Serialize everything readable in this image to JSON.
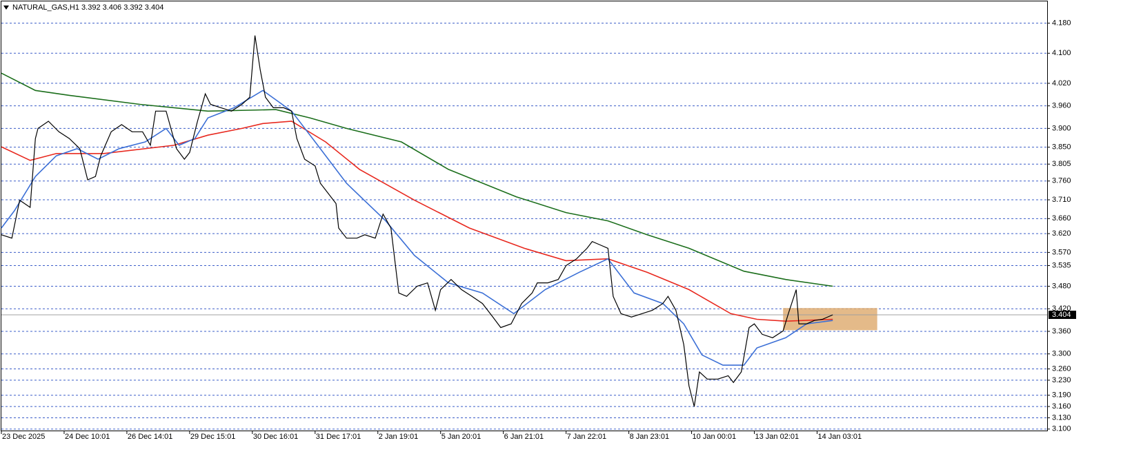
{
  "chart_data": {
    "type": "line",
    "title": "NATURAL_GAS,H1  3.392 3.406 3.392 3.404",
    "xlim": [
      0,
      400
    ],
    "ylim": [
      3.096,
      4.238
    ],
    "grid": true,
    "xticks": [
      {
        "value": 0,
        "label": "23 Dec 2025"
      },
      {
        "value": 24,
        "label": "24 Dec 10:01"
      },
      {
        "value": 48,
        "label": "26 Dec 14:01"
      },
      {
        "value": 72,
        "label": "29 Dec 15:01"
      },
      {
        "value": 96,
        "label": "30 Dec 16:01"
      },
      {
        "value": 120,
        "label": "31 Dec 17:01"
      },
      {
        "value": 144,
        "label": "2 Jan 19:01"
      },
      {
        "value": 168,
        "label": "5 Jan 20:01"
      },
      {
        "value": 192,
        "label": "6 Jan 21:01"
      },
      {
        "value": 216,
        "label": "7 Jan 22:01"
      },
      {
        "value": 240,
        "label": "8 Jan 23:01"
      },
      {
        "value": 264,
        "label": "10 Jan 00:01"
      },
      {
        "value": 288,
        "label": "13 Jan 02:01"
      },
      {
        "value": 312,
        "label": "14 Jan 03:01"
      }
    ],
    "yticks": [
      {
        "value": 4.18,
        "label": "4.180"
      },
      {
        "value": 4.1,
        "label": "4.100"
      },
      {
        "value": 4.02,
        "label": "4.020"
      },
      {
        "value": 3.96,
        "label": "3.960"
      },
      {
        "value": 3.9,
        "label": "3.900"
      },
      {
        "value": 3.85,
        "label": "3.850"
      },
      {
        "value": 3.805,
        "label": "3.805"
      },
      {
        "value": 3.76,
        "label": "3.760"
      },
      {
        "value": 3.71,
        "label": "3.710"
      },
      {
        "value": 3.66,
        "label": "3.660"
      },
      {
        "value": 3.62,
        "label": "3.620"
      },
      {
        "value": 3.57,
        "label": "3.570"
      },
      {
        "value": 3.535,
        "label": "3.535"
      },
      {
        "value": 3.48,
        "label": "3.480"
      },
      {
        "value": 3.42,
        "label": "3.420"
      },
      {
        "value": 3.36,
        "label": "3.360"
      },
      {
        "value": 3.3,
        "label": "3.300"
      },
      {
        "value": 3.26,
        "label": "3.260"
      },
      {
        "value": 3.23,
        "label": "3.230"
      },
      {
        "value": 3.19,
        "label": "3.190"
      },
      {
        "value": 3.16,
        "label": "3.160"
      },
      {
        "value": 3.13,
        "label": "3.130"
      },
      {
        "value": 3.1,
        "label": "3.100"
      }
    ],
    "current_price": {
      "value": 3.404,
      "label": "3.404"
    },
    "zone": {
      "color": "#dfae74",
      "x": [
        299,
        335
      ],
      "y": [
        3.363,
        3.422
      ]
    },
    "series": [
      {
        "color": "#000000",
        "x": [
          0,
          4,
          7,
          11,
          13,
          14,
          18,
          22,
          26,
          30,
          33,
          36,
          38,
          42,
          46,
          50,
          54,
          57,
          59,
          63,
          67,
          70,
          72,
          75,
          78,
          80,
          84,
          88,
          92,
          95,
          97,
          99,
          101,
          104,
          108,
          111,
          113,
          116,
          120,
          122,
          125,
          128,
          129,
          132,
          136,
          139,
          143,
          146,
          149,
          152,
          155,
          159,
          163,
          166,
          168,
          172,
          176,
          180,
          184,
          188,
          191,
          195,
          199,
          203,
          205,
          209,
          213,
          216,
          220,
          224,
          226,
          229,
          232,
          234,
          237,
          241,
          245,
          249,
          253,
          255,
          258,
          261,
          263,
          265,
          267,
          270,
          274,
          278,
          280,
          283,
          286,
          288,
          291,
          295,
          299,
          301,
          304,
          305,
          308,
          311,
          314,
          318
        ],
        "values": [
          3.617,
          3.608,
          3.709,
          3.69,
          3.873,
          3.9,
          3.919,
          3.891,
          3.873,
          3.846,
          3.763,
          3.772,
          3.827,
          3.891,
          3.91,
          3.891,
          3.891,
          3.855,
          3.946,
          3.946,
          3.846,
          3.818,
          3.836,
          3.919,
          3.992,
          3.964,
          3.955,
          3.946,
          3.964,
          3.983,
          4.147,
          4.056,
          3.983,
          3.955,
          3.955,
          3.946,
          3.873,
          3.818,
          3.8,
          3.754,
          3.727,
          3.7,
          3.635,
          3.608,
          3.608,
          3.617,
          3.608,
          3.672,
          3.635,
          3.462,
          3.453,
          3.48,
          3.489,
          3.416,
          3.471,
          3.498,
          3.471,
          3.453,
          3.434,
          3.398,
          3.37,
          3.38,
          3.434,
          3.462,
          3.489,
          3.489,
          3.498,
          3.535,
          3.553,
          3.581,
          3.599,
          3.59,
          3.581,
          3.453,
          3.407,
          3.398,
          3.407,
          3.416,
          3.434,
          3.453,
          3.416,
          3.325,
          3.215,
          3.16,
          3.252,
          3.233,
          3.233,
          3.242,
          3.224,
          3.252,
          3.37,
          3.38,
          3.352,
          3.343,
          3.361,
          3.407,
          3.471,
          3.38,
          3.38,
          3.389,
          3.392,
          3.404
        ]
      },
      {
        "color": "#3b6fd6",
        "x": [
          0,
          5,
          13,
          21,
          29,
          37,
          45,
          55,
          63,
          68,
          74,
          79,
          89,
          100,
          111,
          121,
          132,
          147,
          158,
          171,
          184,
          196,
          208,
          221,
          232,
          242,
          253,
          261,
          268,
          276,
          284,
          289,
          300,
          308,
          318
        ],
        "values": [
          3.635,
          3.681,
          3.772,
          3.827,
          3.846,
          3.818,
          3.846,
          3.864,
          3.9,
          3.855,
          3.873,
          3.928,
          3.955,
          4.001,
          3.946,
          3.855,
          3.754,
          3.654,
          3.562,
          3.489,
          3.462,
          3.407,
          3.471,
          3.517,
          3.553,
          3.462,
          3.434,
          3.38,
          3.297,
          3.27,
          3.27,
          3.316,
          3.343,
          3.38,
          3.389
        ]
      },
      {
        "color": "#e8281e",
        "x": [
          0,
          11,
          21,
          39,
          66,
          79,
          92,
          100,
          111,
          124,
          137,
          158,
          179,
          200,
          216,
          232,
          247,
          263,
          279,
          289,
          300,
          318
        ],
        "values": [
          3.851,
          3.815,
          3.833,
          3.833,
          3.855,
          3.882,
          3.9,
          3.913,
          3.919,
          3.864,
          3.791,
          3.709,
          3.635,
          3.581,
          3.548,
          3.553,
          3.517,
          3.471,
          3.407,
          3.392,
          3.387,
          3.392
        ]
      },
      {
        "color": "#1b6e1b",
        "x": [
          0,
          13,
          26,
          53,
          79,
          105,
          118,
          132,
          153,
          171,
          197,
          216,
          232,
          247,
          263,
          284,
          300,
          318
        ],
        "values": [
          4.047,
          4.001,
          3.988,
          3.964,
          3.946,
          3.95,
          3.928,
          3.9,
          3.864,
          3.791,
          3.718,
          3.676,
          3.654,
          3.617,
          3.581,
          3.52,
          3.498,
          3.48
        ]
      }
    ]
  }
}
